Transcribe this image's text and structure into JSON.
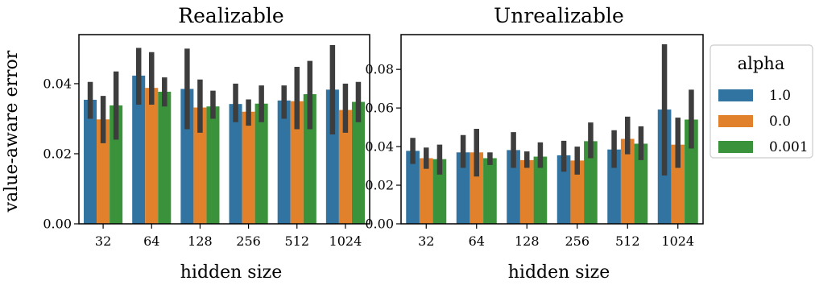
{
  "chart_data": [
    {
      "type": "bar",
      "title": "Realizable",
      "xlabel": "hidden size",
      "ylabel": "value-aware error",
      "ylim": [
        0,
        0.054
      ],
      "yticks": [
        0.0,
        0.02,
        0.04
      ],
      "ytick_labels": [
        "0.00",
        "0.02",
        "0.04"
      ],
      "categories": [
        "32",
        "64",
        "128",
        "256",
        "512",
        "1024"
      ],
      "series": [
        {
          "name": "1.0",
          "color": "#3274a1",
          "values": [
            0.0354,
            0.0423,
            0.0385,
            0.0342,
            0.0352,
            0.0383
          ],
          "ci_low": [
            0.03,
            0.034,
            0.027,
            0.029,
            0.03,
            0.0255
          ],
          "ci_high": [
            0.0405,
            0.0502,
            0.05,
            0.04,
            0.0395,
            0.051
          ]
        },
        {
          "name": "0.0",
          "color": "#e1812c",
          "values": [
            0.0298,
            0.0388,
            0.0332,
            0.032,
            0.035,
            0.0325
          ],
          "ci_low": [
            0.023,
            0.034,
            0.026,
            0.028,
            0.027,
            0.026
          ],
          "ci_high": [
            0.0365,
            0.049,
            0.0412,
            0.0355,
            0.0448,
            0.04
          ]
        },
        {
          "name": "0.001",
          "color": "#3a923a",
          "values": [
            0.0338,
            0.0377,
            0.0335,
            0.0343,
            0.037,
            0.0348
          ],
          "ci_low": [
            0.024,
            0.0335,
            0.03,
            0.029,
            0.027,
            0.029
          ],
          "ci_high": [
            0.0435,
            0.0418,
            0.038,
            0.0395,
            0.0465,
            0.0405
          ]
        }
      ]
    },
    {
      "type": "bar",
      "title": "Unrealizable",
      "xlabel": "hidden size",
      "ylabel": "",
      "ylim": [
        0,
        0.098
      ],
      "yticks": [
        0.0,
        0.02,
        0.04,
        0.06,
        0.08
      ],
      "ytick_labels": [
        "0.00",
        "0.02",
        "0.04",
        "0.06",
        "0.08"
      ],
      "categories": [
        "32",
        "64",
        "128",
        "256",
        "512",
        "1024"
      ],
      "series": [
        {
          "name": "1.0",
          "color": "#3274a1",
          "values": [
            0.0378,
            0.037,
            0.0382,
            0.0355,
            0.0385,
            0.0592
          ],
          "ci_low": [
            0.031,
            0.029,
            0.029,
            0.027,
            0.029,
            0.025
          ],
          "ci_high": [
            0.0445,
            0.046,
            0.0475,
            0.043,
            0.0485,
            0.093
          ]
        },
        {
          "name": "0.0",
          "color": "#e1812c",
          "values": [
            0.034,
            0.037,
            0.033,
            0.0328,
            0.044,
            0.041
          ],
          "ci_low": [
            0.0285,
            0.0245,
            0.029,
            0.0255,
            0.036,
            0.029
          ],
          "ci_high": [
            0.0395,
            0.0492,
            0.0375,
            0.04,
            0.0555,
            0.055
          ]
        },
        {
          "name": "0.001",
          "color": "#3a923a",
          "values": [
            0.0335,
            0.034,
            0.0348,
            0.0428,
            0.0415,
            0.054
          ],
          "ci_low": [
            0.0255,
            0.0305,
            0.029,
            0.034,
            0.033,
            0.039
          ],
          "ci_high": [
            0.041,
            0.037,
            0.0422,
            0.0525,
            0.0505,
            0.0695
          ]
        }
      ]
    }
  ],
  "legend": {
    "title": "alpha",
    "items": [
      {
        "label": "1.0",
        "color": "#3274a1"
      },
      {
        "label": "0.0",
        "color": "#e1812c"
      },
      {
        "label": "0.001",
        "color": "#3a923a"
      }
    ]
  }
}
